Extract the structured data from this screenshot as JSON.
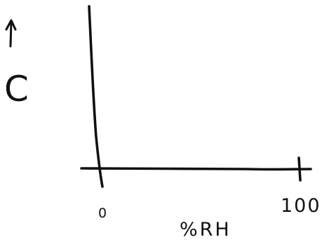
{
  "diagram": {
    "y_axis_label": "C",
    "x_axis_label": "%RH",
    "x_axis_start_label": "0",
    "x_axis_end_label": "100",
    "y_axis_arrow_icon": "up-arrow-icon",
    "ink_color": "#111111",
    "background_color": "#ffffff"
  }
}
